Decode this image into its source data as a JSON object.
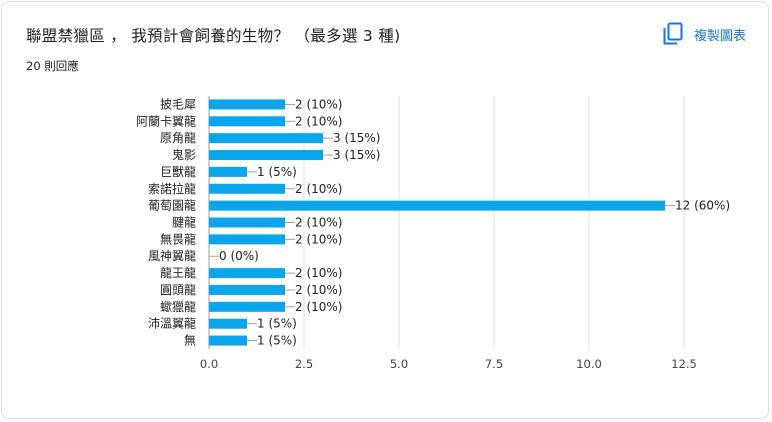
{
  "header": {
    "title": "聯盟禁獵區 ， 我預計會飼養的生物？ （最多選 3 種)",
    "response_count": "20 則回應",
    "copy_label": "複製圖表",
    "copy_icon": "copy-icon"
  },
  "colors": {
    "bar": "#0ba5ec",
    "accent": "#1a73e8"
  },
  "chart_data": {
    "type": "bar",
    "orientation": "horizontal",
    "categories": [
      "披毛犀",
      "阿蘭卡翼龍",
      "原角龍",
      "鬼影",
      "巨獸龍",
      "索諾拉龍",
      "葡萄園龍",
      "腱龍",
      "無畏龍",
      "風神翼龍",
      "龍王龍",
      "圓頭龍",
      "蠍獵龍",
      "沛溫翼龍",
      "無"
    ],
    "values": [
      2,
      2,
      3,
      3,
      1,
      2,
      12,
      2,
      2,
      0,
      2,
      2,
      2,
      1,
      1
    ],
    "labels": [
      "2 (10%)",
      "2 (10%)",
      "3 (15%)",
      "3 (15%)",
      "1 (5%)",
      "2 (10%)",
      "12 (60%)",
      "2 (10%)",
      "2 (10%)",
      "0 (0%)",
      "2 (10%)",
      "2 (10%)",
      "2 (10%)",
      "1 (5%)",
      "1 (5%)"
    ],
    "xticks": [
      "0.0",
      "2.5",
      "5.0",
      "7.5",
      "10.0",
      "12.5"
    ],
    "xlim": [
      0,
      12.5
    ],
    "grid": true
  }
}
